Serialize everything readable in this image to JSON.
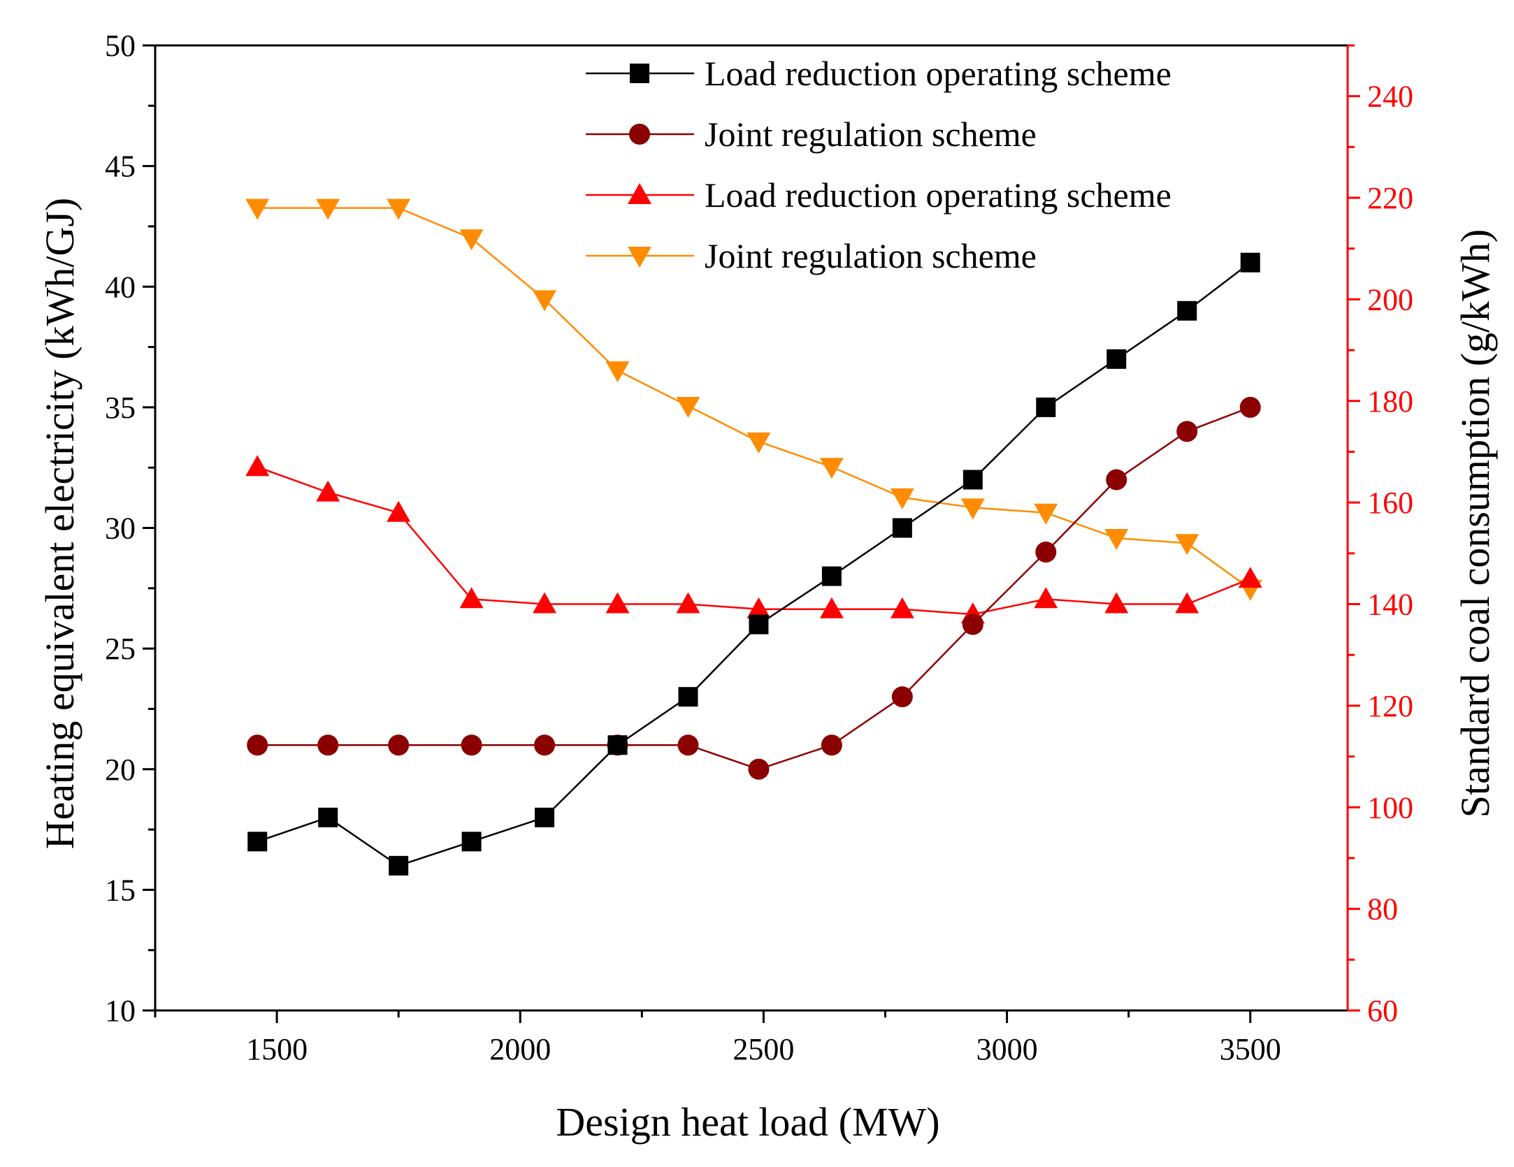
{
  "chart_data": {
    "type": "line",
    "title": "",
    "xlabel": "Design heat load (MW)",
    "ylabel_left": "Heating equivalent electricity (kWh/GJ)",
    "ylabel_right": "Standard coal consumption (g/kWh)",
    "xlim": [
      1250,
      3700
    ],
    "xticks": [
      1500,
      2000,
      2500,
      3000,
      3500
    ],
    "ylim_left": [
      10,
      50
    ],
    "yticks_left": [
      10,
      15,
      20,
      25,
      30,
      35,
      40,
      45,
      50
    ],
    "ylim_right": [
      60,
      250
    ],
    "yticks_right": [
      60,
      80,
      100,
      120,
      140,
      160,
      180,
      200,
      220,
      240
    ],
    "grid": false,
    "legend_position": "top-right",
    "x": [
      1460,
      1605,
      1750,
      1900,
      2050,
      2200,
      2345,
      2490,
      2640,
      2785,
      2930,
      3080,
      3225,
      3370,
      3500
    ],
    "series": [
      {
        "name": "Load reduction operating scheme",
        "axis": "left",
        "marker": "square",
        "color": "#000000",
        "values": [
          17,
          18,
          16,
          17,
          18,
          21,
          23,
          26,
          28,
          30,
          32,
          35,
          37,
          39,
          41
        ]
      },
      {
        "name": "Joint regulation scheme",
        "axis": "left",
        "marker": "circle",
        "color": "#8b0000",
        "values": [
          21,
          21,
          21,
          21,
          21,
          21,
          21,
          20,
          21,
          23,
          26,
          29,
          32,
          34,
          35
        ]
      },
      {
        "name": "Load reduction operating scheme",
        "axis": "right",
        "marker": "triangle-up",
        "color": "#ff0000",
        "values": [
          167,
          162,
          158,
          141,
          140,
          140,
          140,
          139,
          139,
          139,
          138,
          141,
          140,
          140,
          145
        ]
      },
      {
        "name": "Joint regulation scheme",
        "axis": "right",
        "marker": "triangle-down",
        "color": "#ff8c00",
        "values": [
          218,
          218,
          218,
          212,
          200,
          186,
          179,
          172,
          167,
          161,
          159,
          158,
          153,
          152,
          143
        ]
      }
    ]
  }
}
